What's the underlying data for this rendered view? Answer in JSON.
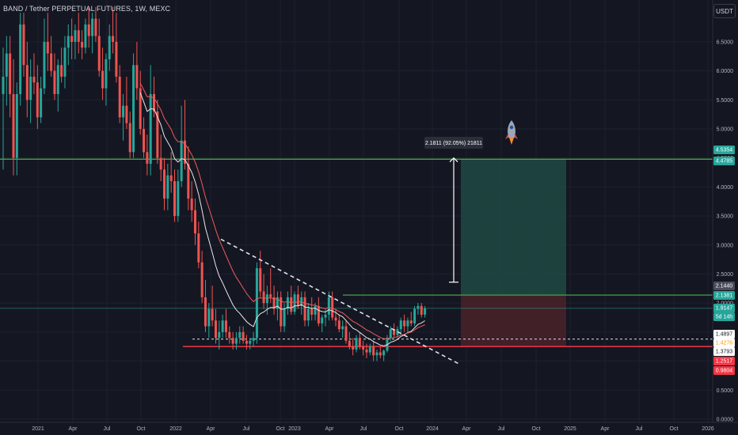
{
  "header": {
    "title": "BAND / Tether PERPETUAL FUTURES, 1W, MEXC",
    "currency": "USDT",
    "measure_label": "2.1811 (92.05%) 21811"
  },
  "colors": {
    "background": "#141722",
    "up": "#26a69a",
    "down": "#ef5350",
    "green_line": "#4caf50",
    "red_line": "#f23645",
    "profit_zone": "#1f4a43",
    "loss_zone": "#4a2229"
  },
  "chart_data": {
    "type": "candlestick",
    "timeframe": "1W",
    "y_axis": {
      "ticks": [
        "6.5000",
        "6.0000",
        "5.5000",
        "5.0000",
        "4.5000",
        "4.0000",
        "3.5000",
        "3.0000",
        "2.5000",
        "2.0000",
        "1.5000",
        "1.0000",
        "0.5000",
        "0.0000"
      ],
      "range": [
        0,
        7.2
      ]
    },
    "x_axis": {
      "ticks": [
        "2021",
        "Apr",
        "Jul",
        "Oct",
        "2022",
        "Apr",
        "Jul",
        "Oct",
        "2023",
        "Apr",
        "Jul",
        "Oct",
        "2024",
        "Apr",
        "Jul",
        "Oct",
        "2025",
        "Apr",
        "Jul",
        "Oct",
        "2026"
      ]
    },
    "price_labels": [
      {
        "value": "4.5354",
        "bg": "#26a69a",
        "color": "#ffffff"
      },
      {
        "value": "4.4785",
        "bg": "#26a69a",
        "color": "#ffffff"
      },
      {
        "value": "2.1440",
        "bg": "#4a4e5a",
        "color": "#ffffff"
      },
      {
        "value": "2.1381",
        "bg": "#26a69a",
        "color": "#ffffff"
      },
      {
        "value": "1.9147",
        "bg": "#26a69a",
        "color": "#ffffff"
      },
      {
        "value": "5d 14h",
        "bg": "#26a69a",
        "color": "#ffffff"
      },
      {
        "value": "1.4897",
        "bg": "#ffffff",
        "color": "#131722"
      },
      {
        "value": "1.4276",
        "bg": "#ffffff",
        "color": "#ff9800"
      },
      {
        "value": "1.3793",
        "bg": "#ffffff",
        "color": "#131722"
      },
      {
        "value": "1.2517",
        "bg": "#f23645",
        "color": "#ffffff"
      },
      {
        "value": "0.9804",
        "bg": "#f23645",
        "color": "#ffffff"
      }
    ],
    "levels": {
      "target": 4.4785,
      "entry": 2.1381,
      "support": 1.2517,
      "dashed": 1.3793
    },
    "series": [
      {
        "name": "candles",
        "ohlc": [
          [
            5.6,
            6.4,
            4.3,
            5.9
          ],
          [
            5.9,
            6.6,
            5.4,
            6.3
          ],
          [
            6.3,
            6.6,
            5.2,
            5.6
          ],
          [
            5.6,
            6.2,
            4.2,
            4.5
          ],
          [
            4.5,
            5.8,
            4.2,
            5.6
          ],
          [
            5.6,
            7.0,
            5.4,
            6.8
          ],
          [
            6.8,
            7.0,
            5.9,
            6.1
          ],
          [
            6.1,
            6.5,
            5.2,
            5.5
          ],
          [
            5.5,
            6.2,
            5.1,
            5.9
          ],
          [
            5.9,
            6.3,
            5.6,
            5.8
          ],
          [
            5.8,
            6.1,
            5.0,
            5.2
          ],
          [
            5.2,
            5.9,
            5.1,
            5.7
          ],
          [
            5.7,
            6.9,
            5.6,
            6.5
          ],
          [
            6.5,
            7.0,
            6.0,
            6.3
          ],
          [
            6.3,
            6.6,
            5.9,
            6.0
          ],
          [
            6.0,
            6.3,
            5.5,
            5.6
          ],
          [
            5.6,
            6.2,
            5.3,
            6.1
          ],
          [
            6.1,
            6.4,
            5.8,
            5.9
          ],
          [
            5.9,
            6.6,
            5.7,
            6.4
          ],
          [
            6.4,
            6.8,
            6.1,
            6.6
          ],
          [
            6.6,
            6.9,
            6.2,
            6.5
          ],
          [
            6.5,
            6.8,
            6.2,
            6.7
          ],
          [
            6.7,
            7.0,
            6.3,
            6.5
          ],
          [
            6.5,
            6.7,
            6.2,
            6.4
          ],
          [
            6.4,
            6.9,
            6.3,
            6.8
          ],
          [
            6.8,
            7.1,
            6.4,
            6.6
          ],
          [
            6.6,
            7.0,
            6.3,
            6.9
          ],
          [
            6.9,
            7.1,
            6.5,
            6.6
          ],
          [
            6.6,
            6.9,
            5.9,
            6.0
          ],
          [
            6.0,
            6.4,
            5.5,
            5.7
          ],
          [
            5.7,
            6.3,
            5.4,
            6.2
          ],
          [
            6.2,
            6.8,
            6.0,
            6.6
          ],
          [
            6.6,
            7.1,
            6.3,
            6.5
          ],
          [
            6.5,
            7.0,
            5.8,
            5.9
          ],
          [
            5.9,
            6.1,
            5.1,
            5.2
          ],
          [
            5.2,
            5.6,
            4.8,
            5.4
          ],
          [
            5.4,
            5.9,
            5.0,
            5.1
          ],
          [
            5.1,
            5.3,
            4.5,
            4.6
          ],
          [
            4.6,
            6.3,
            4.5,
            6.1
          ],
          [
            6.1,
            6.5,
            5.5,
            5.7
          ],
          [
            5.7,
            6.0,
            4.9,
            5.0
          ],
          [
            5.0,
            5.2,
            4.5,
            4.6
          ],
          [
            4.6,
            4.9,
            4.2,
            4.4
          ],
          [
            4.4,
            6.1,
            4.2,
            5.6
          ],
          [
            5.6,
            5.9,
            5.2,
            5.3
          ],
          [
            5.3,
            5.5,
            4.4,
            4.5
          ],
          [
            4.5,
            4.9,
            4.1,
            4.3
          ],
          [
            4.3,
            4.5,
            3.6,
            3.8
          ],
          [
            3.8,
            4.4,
            3.6,
            4.2
          ],
          [
            4.2,
            4.6,
            3.9,
            4.1
          ],
          [
            4.1,
            4.3,
            3.4,
            3.5
          ],
          [
            3.5,
            4.3,
            3.4,
            4.1
          ],
          [
            4.1,
            5.4,
            4.0,
            4.8
          ],
          [
            4.8,
            5.5,
            4.3,
            4.4
          ],
          [
            4.4,
            4.7,
            3.6,
            3.8
          ],
          [
            3.8,
            4.1,
            3.4,
            3.6
          ],
          [
            3.6,
            3.8,
            3.0,
            3.2
          ],
          [
            3.2,
            3.4,
            2.6,
            2.7
          ],
          [
            2.7,
            2.9,
            2.0,
            2.1
          ],
          [
            2.1,
            2.4,
            1.5,
            1.6
          ],
          [
            1.6,
            2.0,
            1.4,
            1.9
          ],
          [
            1.9,
            2.3,
            1.6,
            1.7
          ],
          [
            1.7,
            1.9,
            1.3,
            1.4
          ],
          [
            1.4,
            1.7,
            1.2,
            1.5
          ],
          [
            1.5,
            1.8,
            1.4,
            1.7
          ],
          [
            1.7,
            1.9,
            1.4,
            1.5
          ],
          [
            1.5,
            1.6,
            1.3,
            1.4
          ],
          [
            1.4,
            1.5,
            1.2,
            1.3
          ],
          [
            1.3,
            1.5,
            1.2,
            1.4
          ],
          [
            1.4,
            1.6,
            1.3,
            1.5
          ],
          [
            1.5,
            1.6,
            1.3,
            1.35
          ],
          [
            1.35,
            1.45,
            1.2,
            1.3
          ],
          [
            1.3,
            1.4,
            1.2,
            1.35
          ],
          [
            1.35,
            1.5,
            1.25,
            1.4
          ],
          [
            1.4,
            2.7,
            1.3,
            2.6
          ],
          [
            2.6,
            2.9,
            2.1,
            2.2
          ],
          [
            2.2,
            2.5,
            1.9,
            2.0
          ],
          [
            2.0,
            2.3,
            1.8,
            2.15
          ],
          [
            2.15,
            2.6,
            2.0,
            2.1
          ],
          [
            2.1,
            2.3,
            1.8,
            1.9
          ],
          [
            1.9,
            2.2,
            1.7,
            2.1
          ],
          [
            2.1,
            2.2,
            1.5,
            1.6
          ],
          [
            1.6,
            2.0,
            1.5,
            1.9
          ],
          [
            1.9,
            2.2,
            1.8,
            2.1
          ],
          [
            2.1,
            2.3,
            1.8,
            1.85
          ],
          [
            1.85,
            2.2,
            1.8,
            2.15
          ],
          [
            2.15,
            2.3,
            1.9,
            1.95
          ],
          [
            1.95,
            2.2,
            1.8,
            2.1
          ],
          [
            2.1,
            2.2,
            1.6,
            1.7
          ],
          [
            1.7,
            2.0,
            1.6,
            1.9
          ],
          [
            1.9,
            2.1,
            1.7,
            1.8
          ],
          [
            1.8,
            2.0,
            1.7,
            1.95
          ],
          [
            1.95,
            2.1,
            1.6,
            1.65
          ],
          [
            1.65,
            1.8,
            1.5,
            1.75
          ],
          [
            1.75,
            1.9,
            1.6,
            1.8
          ],
          [
            1.8,
            2.2,
            1.7,
            2.1
          ],
          [
            2.1,
            2.2,
            1.7,
            1.75
          ],
          [
            1.75,
            1.9,
            1.6,
            1.7
          ],
          [
            1.7,
            1.8,
            1.5,
            1.55
          ],
          [
            1.55,
            1.7,
            1.4,
            1.6
          ],
          [
            1.6,
            1.7,
            1.3,
            1.35
          ],
          [
            1.35,
            1.5,
            1.2,
            1.25
          ],
          [
            1.25,
            1.4,
            1.1,
            1.2
          ],
          [
            1.2,
            1.45,
            1.15,
            1.4
          ],
          [
            1.4,
            1.5,
            1.2,
            1.25
          ],
          [
            1.25,
            1.35,
            1.1,
            1.2
          ],
          [
            1.2,
            1.3,
            1.05,
            1.15
          ],
          [
            1.15,
            1.3,
            1.1,
            1.25
          ],
          [
            1.25,
            1.35,
            1.0,
            1.1
          ],
          [
            1.1,
            1.2,
            1.0,
            1.15
          ],
          [
            1.15,
            1.25,
            1.05,
            1.1
          ],
          [
            1.1,
            1.2,
            1.0,
            1.18
          ],
          [
            1.18,
            1.45,
            1.15,
            1.4
          ],
          [
            1.4,
            1.6,
            1.35,
            1.55
          ],
          [
            1.55,
            1.65,
            1.4,
            1.45
          ],
          [
            1.45,
            1.6,
            1.4,
            1.55
          ],
          [
            1.55,
            1.75,
            1.45,
            1.7
          ],
          [
            1.7,
            1.8,
            1.5,
            1.6
          ],
          [
            1.6,
            1.75,
            1.5,
            1.7
          ],
          [
            1.7,
            1.85,
            1.6,
            1.65
          ],
          [
            1.65,
            1.95,
            1.6,
            1.9
          ],
          [
            1.9,
            2.0,
            1.8,
            1.95
          ],
          [
            1.95,
            2.0,
            1.75,
            1.8
          ],
          [
            1.8,
            1.95,
            1.75,
            1.91
          ]
        ]
      }
    ],
    "annotations": [
      "rocket-icon",
      "long-position-tool",
      "descending-trendline",
      "measure-arrow"
    ]
  }
}
